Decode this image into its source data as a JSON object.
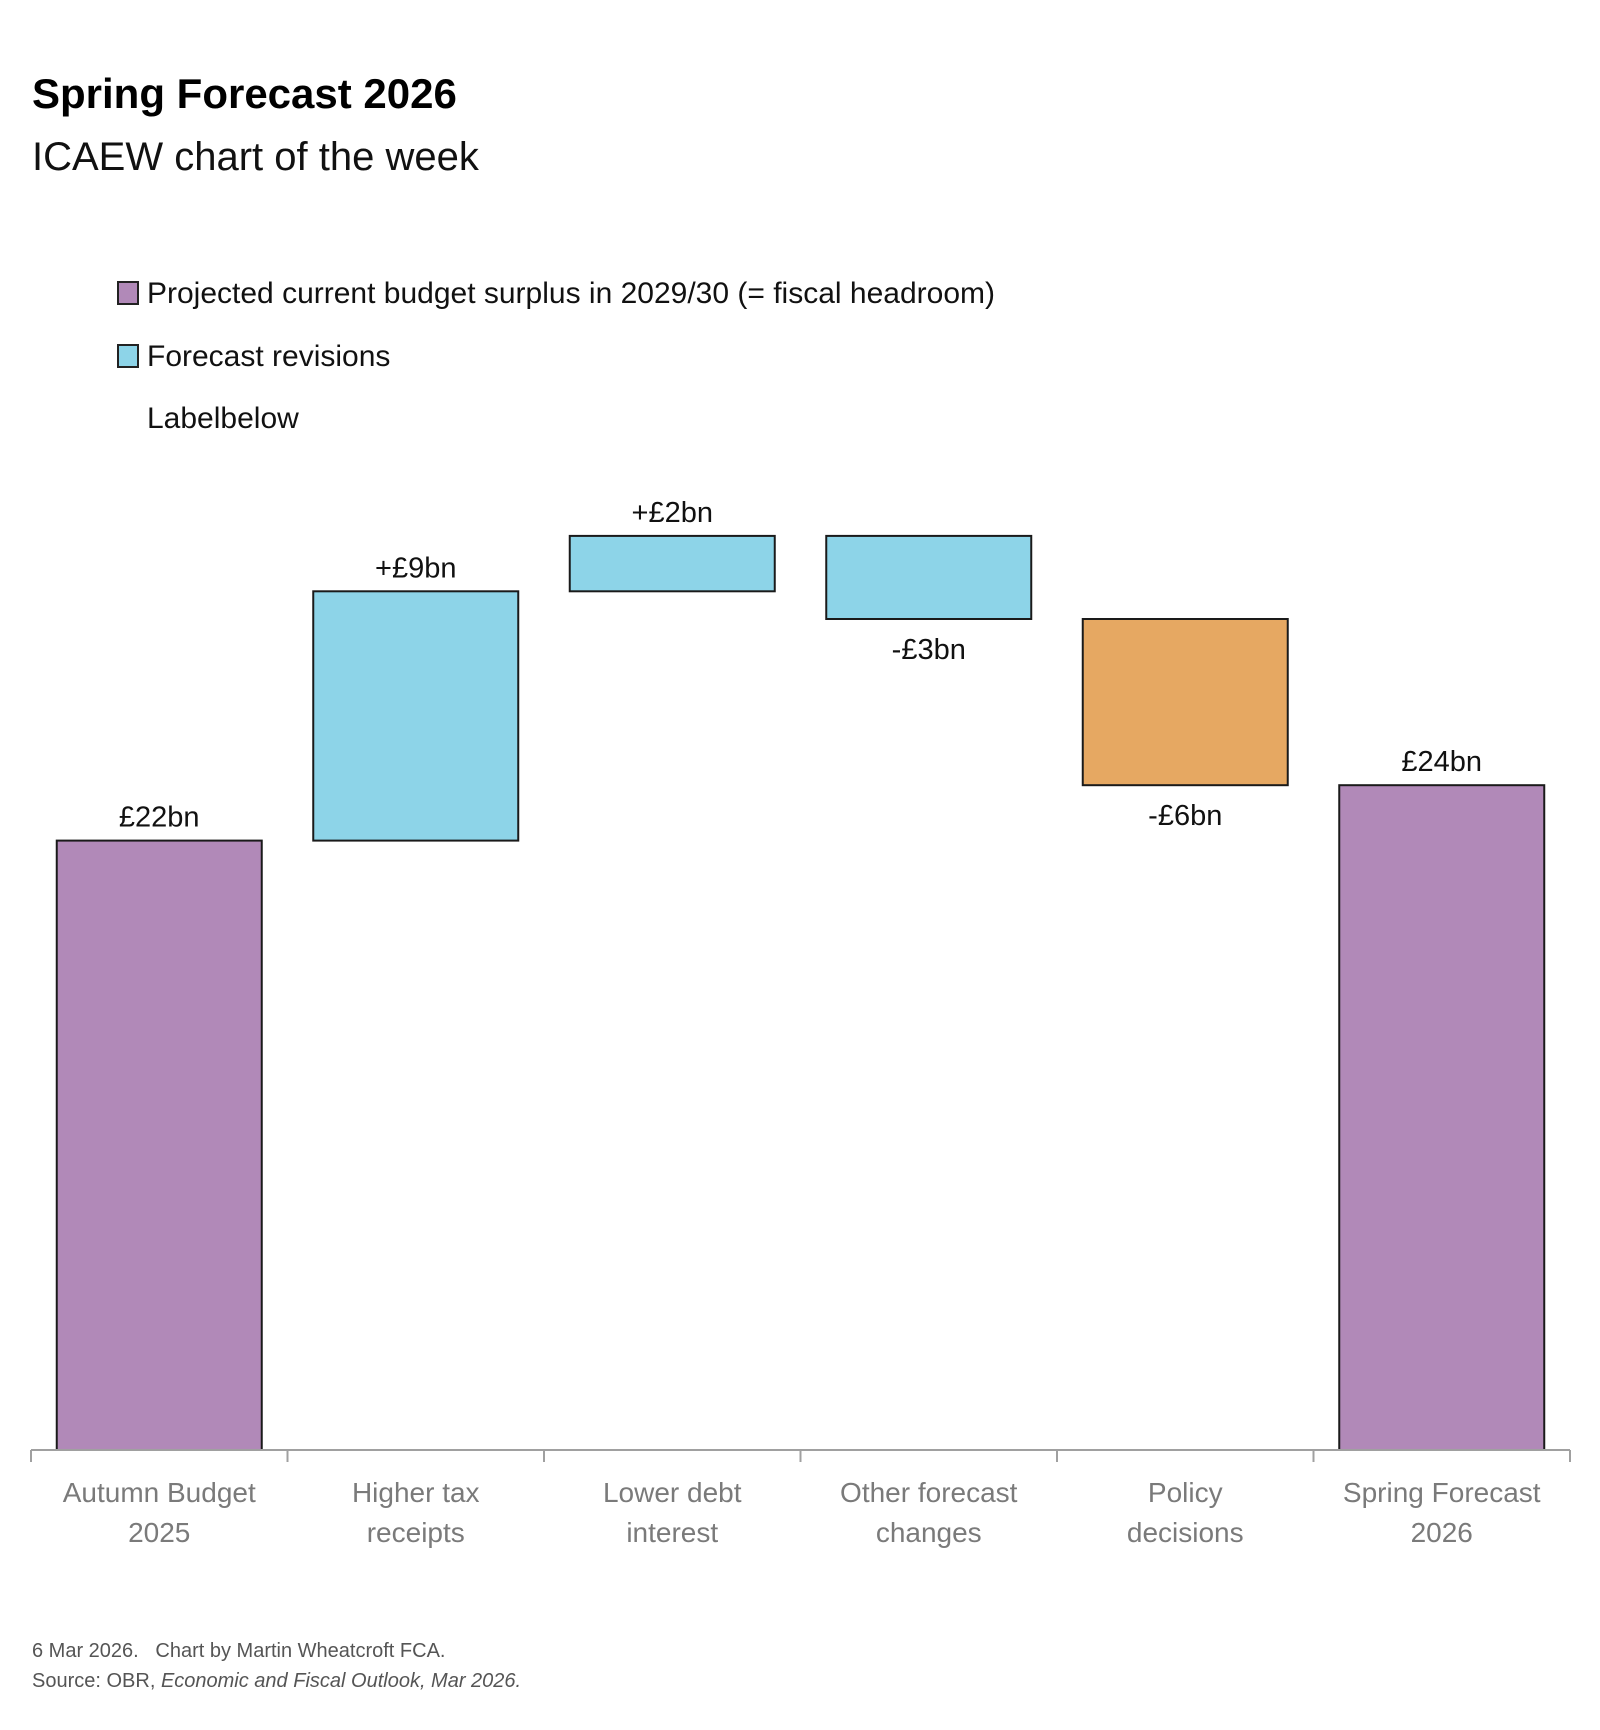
{
  "chart_data": {
    "type": "waterfall",
    "title": "Spring Forecast 2026",
    "subtitle": "ICAEW chart of the week",
    "legend": [
      {
        "label": "Projected current budget surplus in 2029/30 (= fiscal headroom)",
        "color": "#B189B8"
      },
      {
        "label": "Forecast revisions",
        "color": "#8DD4E8"
      },
      {
        "label": "Labelbelow",
        "color": null
      }
    ],
    "legend_placement": "top-left",
    "categories": [
      "Autumn Budget 2025",
      "Higher tax receipts",
      "Lower debt interest",
      "Other forecast changes",
      "Policy decisions",
      "Spring Forecast 2026"
    ],
    "category_lines": [
      [
        "Autumn Budget",
        "2025"
      ],
      [
        "Higher tax",
        "receipts"
      ],
      [
        "Lower debt",
        "interest"
      ],
      [
        "Other forecast",
        "changes"
      ],
      [
        "Policy",
        "decisions"
      ],
      [
        "Spring Forecast",
        "2026"
      ]
    ],
    "bars": [
      {
        "kind": "total",
        "start": 0,
        "end": 22,
        "label": "£22bn",
        "color": "#B189B8",
        "label_pos": "above"
      },
      {
        "kind": "change",
        "start": 22,
        "end": 31,
        "label": "+£9bn",
        "color": "#8DD4E8",
        "label_pos": "above"
      },
      {
        "kind": "change",
        "start": 31,
        "end": 33,
        "label": "+£2bn",
        "color": "#8DD4E8",
        "label_pos": "above"
      },
      {
        "kind": "change",
        "start": 33,
        "end": 30,
        "label": "-£3bn",
        "color": "#8DD4E8",
        "label_pos": "below"
      },
      {
        "kind": "change",
        "start": 30,
        "end": 24,
        "label": "-£6bn",
        "color": "#E6A862",
        "label_pos": "below"
      },
      {
        "kind": "total",
        "start": 0,
        "end": 24,
        "label": "£24bn",
        "color": "#B189B8",
        "label_pos": "above"
      }
    ],
    "unit": "£bn",
    "ylim": [
      0,
      33
    ],
    "grid": false,
    "y_axis_visible": false
  },
  "footer": {
    "line1": "6 Mar 2026.   Chart by Martin Wheatcroft FCA.",
    "source_prefix": "Source: OBR, ",
    "source_italic": "Economic and Fiscal Outlook, Mar 2026."
  }
}
